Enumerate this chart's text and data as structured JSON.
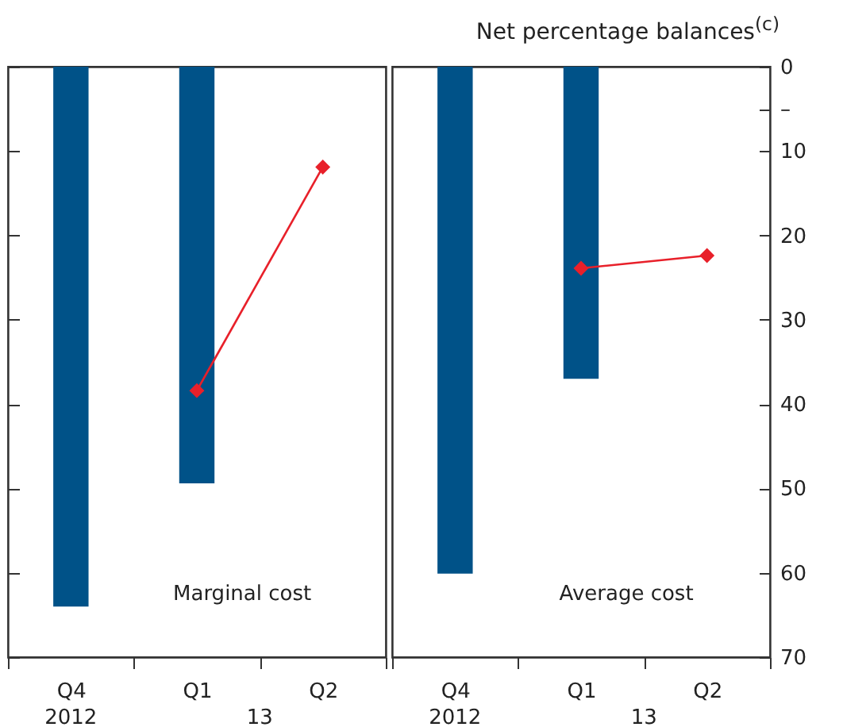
{
  "chart_data": [
    {
      "type": "bar",
      "categories": [
        "Q4",
        "Q1",
        "Q2"
      ],
      "series": [
        {
          "color": "#005288",
          "values": [
            64,
            49.4,
            null
          ]
        },
        {
          "type": "line",
          "color": "#e8202a",
          "values": [
            null,
            38.4,
            11.9
          ]
        }
      ],
      "ylim": [
        70,
        0
      ],
      "yticks": [
        0,
        10,
        20,
        30,
        40,
        50,
        60,
        70
      ],
      "tick_labels": "x",
      "marker": "diamond",
      "grid": false,
      "annotations": [
        "Marginal cost",
        "2012",
        "13"
      ]
    },
    {
      "type": "bar",
      "categories": [
        "Q4",
        "Q1",
        "Q2"
      ],
      "series": [
        {
          "color": "#005288",
          "values": [
            60.1,
            37,
            null
          ]
        },
        {
          "type": "line",
          "color": "#e8202a",
          "values": [
            null,
            23.9,
            22.4
          ]
        }
      ],
      "ylabel": "Net percentage balances$^{(c)}$",
      "ylim": [
        70,
        0
      ],
      "yticks": [
        0,
        {
          "value": 5,
          "label": "–"
        },
        10,
        20,
        30,
        40,
        50,
        60,
        70
      ],
      "marker": "diamond",
      "grid": false,
      "annotations": [
        "Average cost",
        "2012",
        "13"
      ]
    }
  ]
}
